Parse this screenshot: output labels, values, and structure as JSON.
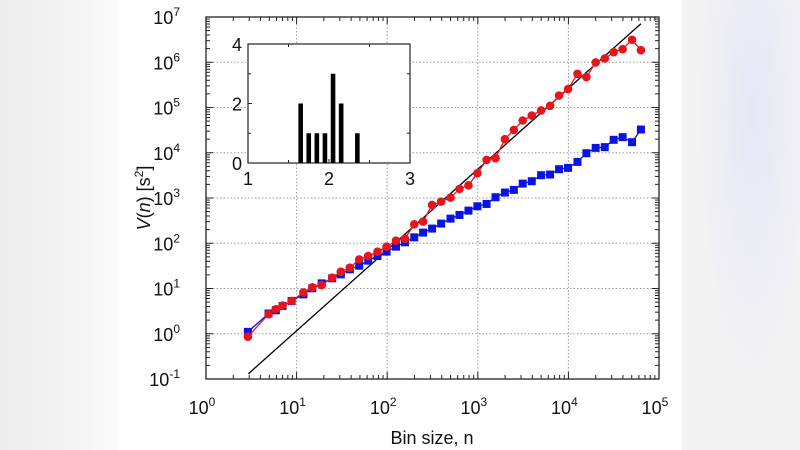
{
  "chart_data": {
    "type": "scatter",
    "title": "",
    "xlabel": "Bin size, n",
    "ylabel_parts": {
      "italic": "V",
      "open": "(",
      "italic2": "n",
      "rest": ") [s",
      "sup": "2",
      "close": "]"
    },
    "x_scale": "log",
    "y_scale": "log",
    "xlim": [
      1,
      100000
    ],
    "ylim": [
      0.1,
      10000000
    ],
    "x_ticks": [
      {
        "base": "10",
        "exp": "0",
        "value": 1
      },
      {
        "base": "10",
        "exp": "1",
        "value": 10
      },
      {
        "base": "10",
        "exp": "2",
        "value": 100
      },
      {
        "base": "10",
        "exp": "3",
        "value": 1000
      },
      {
        "base": "10",
        "exp": "4",
        "value": 10000
      },
      {
        "base": "10",
        "exp": "5",
        "value": 100000
      }
    ],
    "y_ticks": [
      {
        "base": "10",
        "exp": "-1",
        "value": 0.1
      },
      {
        "base": "10",
        "exp": "0",
        "value": 1
      },
      {
        "base": "10",
        "exp": "1",
        "value": 10
      },
      {
        "base": "10",
        "exp": "2",
        "value": 100
      },
      {
        "base": "10",
        "exp": "3",
        "value": 1000
      },
      {
        "base": "10",
        "exp": "4",
        "value": 10000
      },
      {
        "base": "10",
        "exp": "5",
        "value": 100000
      },
      {
        "base": "10",
        "exp": "6",
        "value": 1000000
      },
      {
        "base": "10",
        "exp": "7",
        "value": 10000000
      }
    ],
    "grid": true,
    "series": [
      {
        "marker": "circle",
        "color": "#e8141c",
        "x": [
          2.9,
          4.9,
          5.9,
          7,
          8.8,
          11.9,
          14.9,
          18.9,
          24.7,
          30.8,
          38.7,
          49.1,
          61.7,
          78.2,
          98.4,
          125,
          157,
          199,
          249,
          313,
          394,
          500,
          628,
          789,
          990,
          1250,
          1570,
          1990,
          2500,
          3130,
          3940,
          5000,
          6280,
          7890,
          9910,
          12600,
          15800,
          20000,
          25200,
          31600,
          39700,
          50400,
          63200
        ],
        "y": [
          0.86,
          2.7,
          3.5,
          4.2,
          5.3,
          8.2,
          10.6,
          11.9,
          17.3,
          23.5,
          28.8,
          44,
          52,
          65,
          84,
          114,
          126,
          262,
          301,
          703,
          832,
          1020,
          1590,
          1910,
          3530,
          6950,
          7570,
          19900,
          32000,
          51600,
          66500,
          85900,
          109000,
          184000,
          255000,
          556000,
          469000,
          990000,
          1210000,
          1670000,
          1950000,
          3140000,
          1850000
        ]
      },
      {
        "marker": "square",
        "color": "#0a14e0",
        "x": [
          2.9,
          4.9,
          5.9,
          7,
          8.8,
          11.9,
          14.9,
          18.9,
          24.7,
          30.8,
          38.7,
          49.1,
          61.7,
          78.2,
          98.4,
          125,
          157,
          199,
          249,
          313,
          394,
          500,
          628,
          789,
          990,
          1250,
          1570,
          1990,
          2500,
          3130,
          3940,
          5000,
          6280,
          7890,
          9910,
          12600,
          15800,
          20000,
          25200,
          31600,
          39700,
          50400,
          63200
        ],
        "y": [
          1.1,
          2.8,
          3.3,
          4.1,
          5.3,
          7.4,
          10.1,
          13,
          16.8,
          20.5,
          26.5,
          31.9,
          41.2,
          52.3,
          65.2,
          84.1,
          105,
          135,
          172,
          211,
          272,
          350,
          422,
          526,
          656,
          739,
          1040,
          1320,
          1510,
          2080,
          2350,
          3190,
          3300,
          4330,
          4630,
          6280,
          9770,
          12800,
          13300,
          19300,
          22100,
          17100,
          32600
        ]
      }
    ],
    "fit_line": {
      "color": "#000000",
      "x": [
        2.93,
        63200
      ],
      "y": [
        0.13,
        7100000
      ]
    },
    "inset": {
      "type": "bar",
      "xlim": [
        1,
        3
      ],
      "ylim": [
        0,
        4
      ],
      "x_ticks": [
        "1",
        "2",
        "3"
      ],
      "y_ticks": [
        "0",
        "2",
        "4"
      ],
      "x": [
        1.65,
        1.75,
        1.85,
        1.95,
        2.05,
        2.15,
        2.35
      ],
      "values": [
        2,
        1,
        1,
        1,
        3,
        2,
        1
      ],
      "color": "#000000"
    }
  }
}
